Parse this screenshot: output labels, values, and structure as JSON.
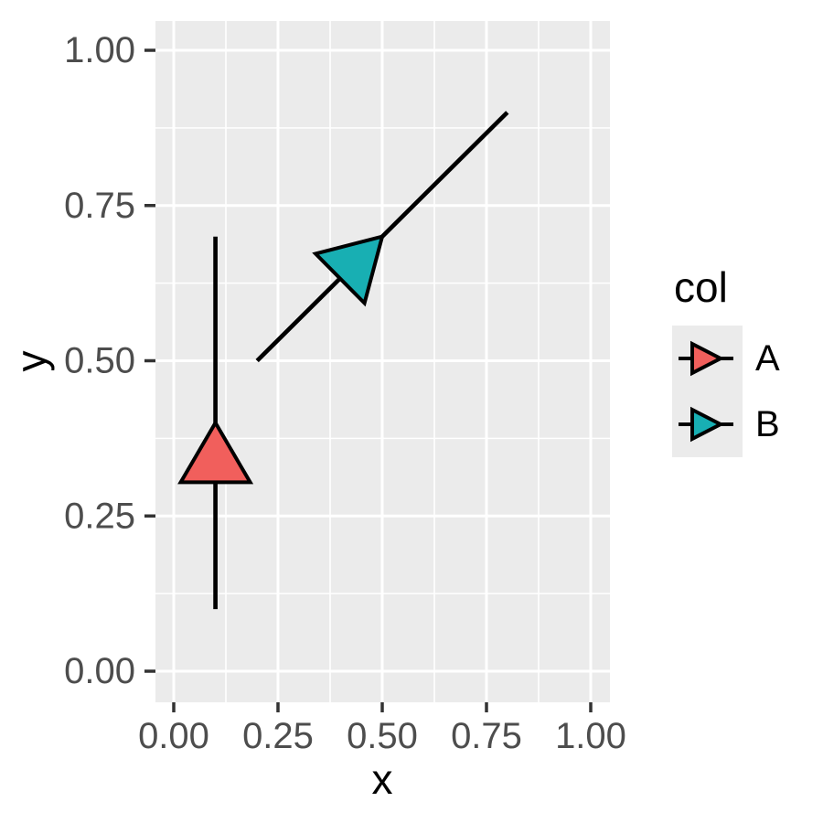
{
  "chart_data": {
    "type": "line",
    "subtype": "segments_with_midpoint_arrowheads",
    "title": "",
    "xlabel": "x",
    "ylabel": "y",
    "xlim": [
      -0.05,
      1.05
    ],
    "ylim": [
      -0.05,
      1.05
    ],
    "grid": "major and minor white gridlines on grey panel",
    "panel_bg": "#EBEBEB",
    "grid_color": "#FFFFFF",
    "segment_color": "#000000",
    "tick_color": "#333333",
    "tick_label_color": "#4D4D4D",
    "x_ticks": {
      "values": [
        0,
        0.25,
        0.5,
        0.75,
        1
      ],
      "labels": [
        "0.00",
        "0.25",
        "0.50",
        "0.75",
        "1.00"
      ]
    },
    "y_ticks": {
      "values": [
        0,
        0.25,
        0.5,
        0.75,
        1
      ],
      "labels": [
        "0.00",
        "0.25",
        "0.50",
        "0.75",
        "1.00"
      ]
    },
    "x_minor": [
      0.125,
      0.375,
      0.625,
      0.875
    ],
    "y_minor": [
      0.125,
      0.375,
      0.625,
      0.875
    ],
    "series": [
      {
        "name": "A",
        "fill": "#F15F5C",
        "x1": 0.1,
        "y1": 0.1,
        "x2": 0.1,
        "y2": 0.7,
        "arrow_at": "midpoint"
      },
      {
        "name": "B",
        "fill": "#18AFB3",
        "x1": 0.2,
        "y1": 0.5,
        "x2": 0.8,
        "y2": 0.9,
        "arrow_at": "midpoint"
      }
    ],
    "legend": {
      "title": "col",
      "position": "right",
      "key_bg": "#EBEBEB",
      "entries": [
        {
          "label": "A",
          "fill": "#F15F5C"
        },
        {
          "label": "B",
          "fill": "#18AFB3"
        }
      ]
    }
  }
}
